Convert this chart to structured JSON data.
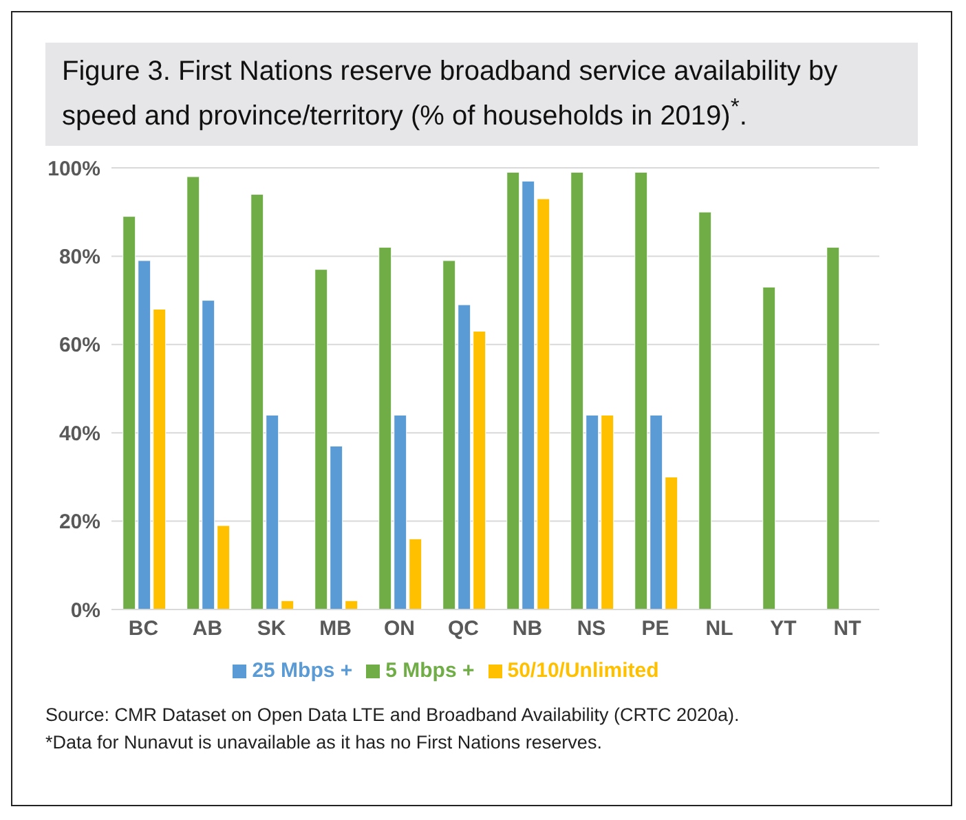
{
  "chart_data": {
    "type": "bar",
    "title": "Figure 3. First Nations reserve broadband service availability by speed and province/territory (% of households in 2019)$^{*}$.",
    "categories": [
      "BC",
      "AB",
      "SK",
      "MB",
      "ON",
      "QC",
      "NB",
      "NS",
      "PE",
      "NL",
      "YT",
      "NT"
    ],
    "series": [
      {
        "name": "5 Mbps +",
        "color": "#70ad47",
        "values": [
          89,
          98,
          94,
          77,
          82,
          79,
          99,
          99,
          99,
          90,
          73,
          82
        ]
      },
      {
        "name": "25 Mbps +",
        "color": "#5b9bd5",
        "values": [
          79,
          70,
          44,
          37,
          44,
          69,
          97,
          44,
          44,
          0,
          0,
          0
        ]
      },
      {
        "name": "50/10/Unlimited",
        "color": "#ffc000",
        "values": [
          68,
          19,
          2,
          2,
          16,
          63,
          93,
          44,
          30,
          0,
          0,
          0
        ]
      }
    ],
    "ylim": [
      0,
      100
    ],
    "yticks": [
      {
        "value": 0,
        "label": "0%"
      },
      {
        "value": 20,
        "label": "20%"
      },
      {
        "value": 40,
        "label": "40%"
      },
      {
        "value": 60,
        "label": "60%"
      },
      {
        "value": 80,
        "label": "80%"
      },
      {
        "value": 100,
        "label": "100%"
      }
    ],
    "grid": "y",
    "legend": "bottom",
    "annotations": [
      "Source: CMR Dataset on Open Data LTE and Broadband Availability (CRTC 2020a).",
      "*Data for Nunavut is unavailable as it has no First Nations reserves."
    ]
  }
}
